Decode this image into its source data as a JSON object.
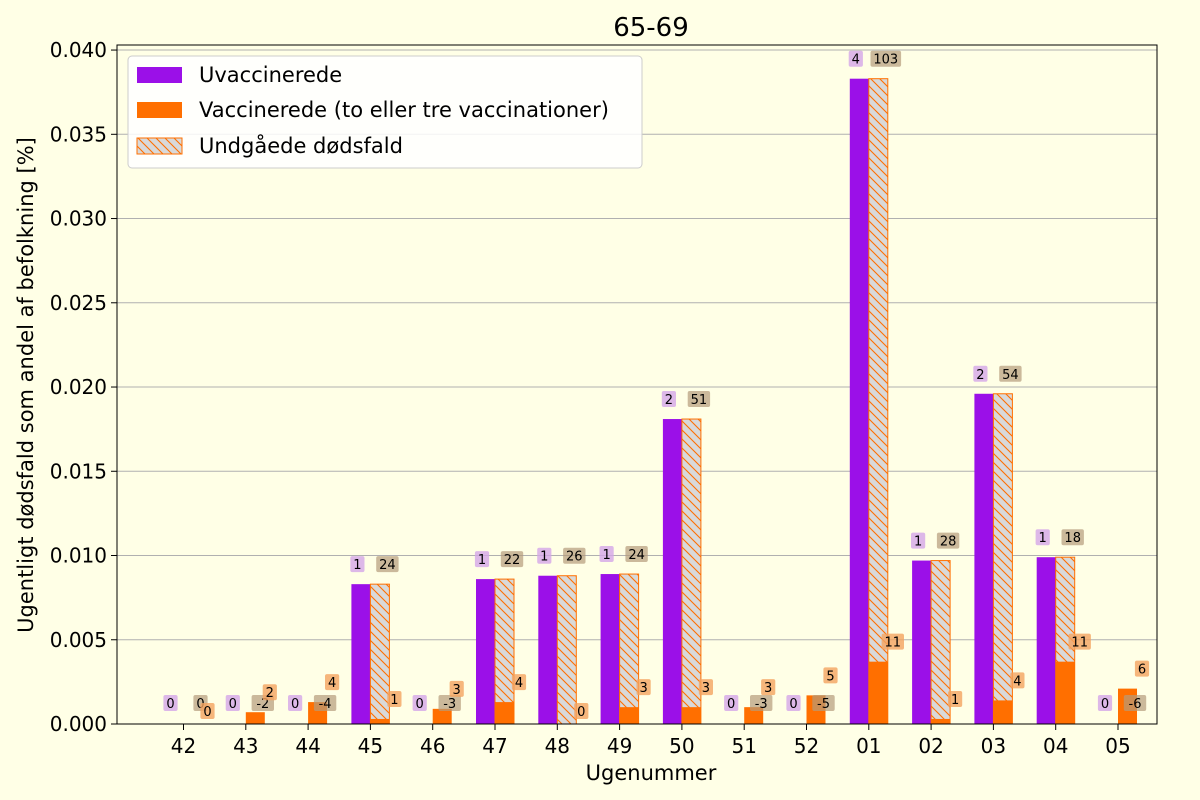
{
  "chart_data": {
    "type": "bar",
    "title": "65-69",
    "xlabel": "Ugenummer",
    "ylabel": "Ugentligt dødsfald som andel af befolkning [%]",
    "ylim": [
      0,
      0.0403
    ],
    "yticks": [
      "0.000",
      "0.005",
      "0.010",
      "0.015",
      "0.020",
      "0.025",
      "0.030",
      "0.035",
      "0.040"
    ],
    "grid": "horizontal",
    "legend_position": "top-left",
    "categories": [
      "42",
      "43",
      "44",
      "45",
      "46",
      "47",
      "48",
      "49",
      "50",
      "51",
      "52",
      "01",
      "02",
      "03",
      "04",
      "05"
    ],
    "series": [
      {
        "name": "Uvaccinerede",
        "color": "#9b10e8",
        "values": [
          0,
          0,
          0,
          0.0083,
          0,
          0.0086,
          0.0088,
          0.0089,
          0.0181,
          0,
          0,
          0.0383,
          0.0097,
          0.0196,
          0.0099,
          0
        ],
        "labels": [
          "0",
          "0",
          "0",
          "1",
          "0",
          "1",
          "1",
          "1",
          "2",
          "0",
          "0",
          "4",
          "1",
          "2",
          "1",
          "0"
        ]
      },
      {
        "name": "Vaccinerede (to eller tre vaccinationer)",
        "color": "#ff6f00",
        "values": [
          0,
          0.0007,
          0.0013,
          0.0003,
          0.0009,
          0.0013,
          0,
          0.001,
          0.001,
          0.001,
          0.0017,
          0.0037,
          0.0003,
          0.0014,
          0.0037,
          0.0021
        ],
        "labels": [
          "0",
          "2",
          "4",
          "1",
          "3",
          "4",
          "0",
          "3",
          "3",
          "3",
          "5",
          "11",
          "1",
          "4",
          "11",
          "6"
        ]
      },
      {
        "name": "Undgåede dødsfald",
        "color": "#d9d9d9",
        "edge_color": "#ff6f00",
        "hatch": "diagonal",
        "values": [
          0,
          0,
          0,
          0.0083,
          0,
          0.0086,
          0.0088,
          0.0089,
          0.0181,
          0,
          0,
          0.0383,
          0.0097,
          0.0196,
          0.0099,
          0
        ],
        "labels": [
          "0",
          "-2",
          "-4",
          "24",
          "-3",
          "22",
          "26",
          "24",
          "51",
          "-3",
          "-5",
          "103",
          "28",
          "54",
          "18",
          "-6"
        ]
      }
    ]
  }
}
